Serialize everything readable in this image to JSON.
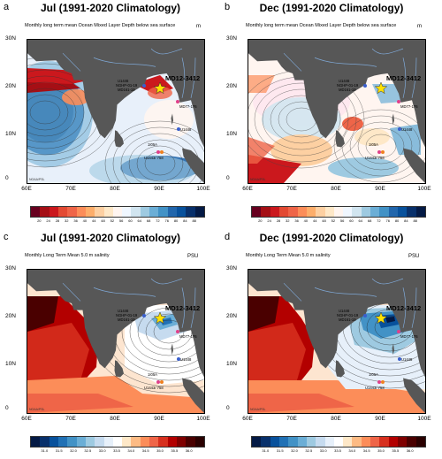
{
  "panels": [
    {
      "letter": "a",
      "title": "Jul  (1991-2020 Climatology)",
      "subtitle": "Monthly long term mean Ocean Mixed Layer Depth below sea surface",
      "unit": "m",
      "type": "mld",
      "season": "jul"
    },
    {
      "letter": "b",
      "title": "Dec  (1991-2020 Climatology)",
      "subtitle": "Monthly long term mean Ocean Mixed Layer Depth below sea surface",
      "unit": "m",
      "type": "mld",
      "season": "dec"
    },
    {
      "letter": "c",
      "title": "Jul  (1991-2020 Climatology)",
      "subtitle": "Monthly Long Term Mean 5.0 m salinity",
      "unit": "PSU",
      "type": "sal",
      "season": "jul"
    },
    {
      "letter": "d",
      "title": "Dec  (1991-2020 Climatology)",
      "subtitle": "Monthly Long Term Mean 5.0 m salinity",
      "unit": "PSU",
      "type": "sal",
      "season": "dec"
    }
  ],
  "axes": {
    "y_ticks": [
      "30N",
      "20N",
      "10N",
      "0"
    ],
    "x_ticks": [
      "60E",
      "70E",
      "80E",
      "90E",
      "100E"
    ]
  },
  "sites": {
    "main": "MD12-3412",
    "labels": [
      "U1446",
      "NGHP-01-19",
      "MD161-19",
      "MD77-176",
      "U1448",
      "1I05A",
      "U1443/ 758"
    ]
  },
  "credit": "NOAA/PSL",
  "colorbars": {
    "mld": {
      "ticks": [
        "20",
        "24",
        "28",
        "32",
        "36",
        "40",
        "44",
        "48",
        "52",
        "56",
        "60",
        "64",
        "68",
        "72",
        "76",
        "80",
        "84",
        "88"
      ],
      "colors": [
        "#67001f",
        "#a50f15",
        "#cb181d",
        "#e34a33",
        "#ef6548",
        "#fc8d59",
        "#fdae6b",
        "#fdd0a2",
        "#fee8c8",
        "#fff5f0",
        "#f0f7ff",
        "#d1e5f0",
        "#9ecae1",
        "#6baed6",
        "#4292c6",
        "#2166ac",
        "#08519c",
        "#08306b",
        "#041a45"
      ]
    },
    "sal": {
      "ticks": [
        "31.0",
        "31.5",
        "32.0",
        "32.5",
        "33.0",
        "33.5",
        "34.0",
        "34.5",
        "35.0",
        "35.5",
        "36.0"
      ],
      "colors": [
        "#041a45",
        "#08306b",
        "#08519c",
        "#2171b5",
        "#4292c6",
        "#6baed6",
        "#9ecae1",
        "#c6dbef",
        "#e7f0fa",
        "#ffffff",
        "#fee8c8",
        "#fdbb84",
        "#fc8d59",
        "#ef6548",
        "#d7301f",
        "#b30000",
        "#7f0000",
        "#4a0000",
        "#2a0000"
      ]
    }
  }
}
